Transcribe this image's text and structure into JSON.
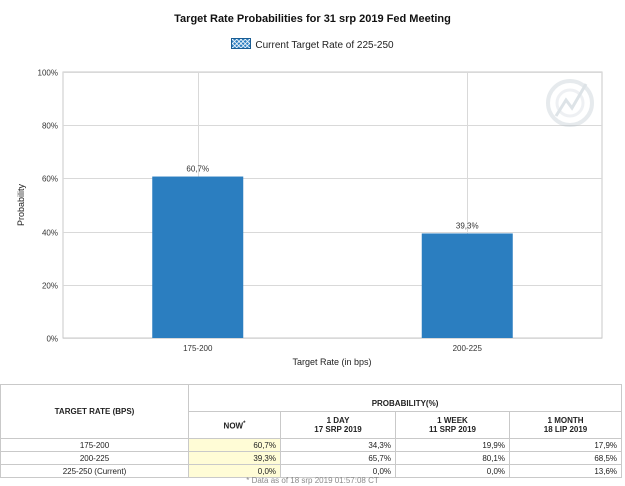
{
  "chart_data": {
    "type": "bar",
    "title": "Target Rate Probabilities for 31 srp 2019 Fed Meeting",
    "legend": [
      "Current Target Rate of 225-250"
    ],
    "legend_position": "top-center",
    "xlabel": "Target Rate (in bps)",
    "ylabel": "Probability",
    "categories": [
      "175-200",
      "200-225"
    ],
    "series": [
      {
        "name": "Current Target Rate of 225-250",
        "values": [
          60.7,
          39.3
        ],
        "labels": [
          "60,7%",
          "39,3%"
        ]
      }
    ],
    "ylim": [
      0,
      100
    ],
    "yticks": [
      "0%",
      "20%",
      "40%",
      "60%",
      "80%",
      "100%"
    ],
    "grid": true,
    "colors": {
      "bar": "#2b7ec0",
      "grid": "#d9d9d9"
    }
  },
  "table": {
    "rate_header": "TARGET RATE (BPS)",
    "prob_header": "PROBABILITY(%)",
    "columns": [
      {
        "line1": "NOW",
        "line2": "",
        "star": "*"
      },
      {
        "line1": "1 DAY",
        "line2": "17 SRP 2019",
        "star": ""
      },
      {
        "line1": "1 WEEK",
        "line2": "11 SRP 2019",
        "star": ""
      },
      {
        "line1": "1 MONTH",
        "line2": "18 LIP 2019",
        "star": ""
      }
    ],
    "rows": [
      {
        "rate": "175-200",
        "values": [
          "60,7%",
          "34,3%",
          "19,9%",
          "17,9%"
        ]
      },
      {
        "rate": "200-225",
        "values": [
          "39,3%",
          "65,7%",
          "80,1%",
          "68,5%"
        ]
      },
      {
        "rate": "225-250 (Current)",
        "values": [
          "0,0%",
          "0,0%",
          "0,0%",
          "13,6%"
        ]
      }
    ],
    "footnote": "* Data as of 18 srp 2019 01:57:08 CT"
  }
}
